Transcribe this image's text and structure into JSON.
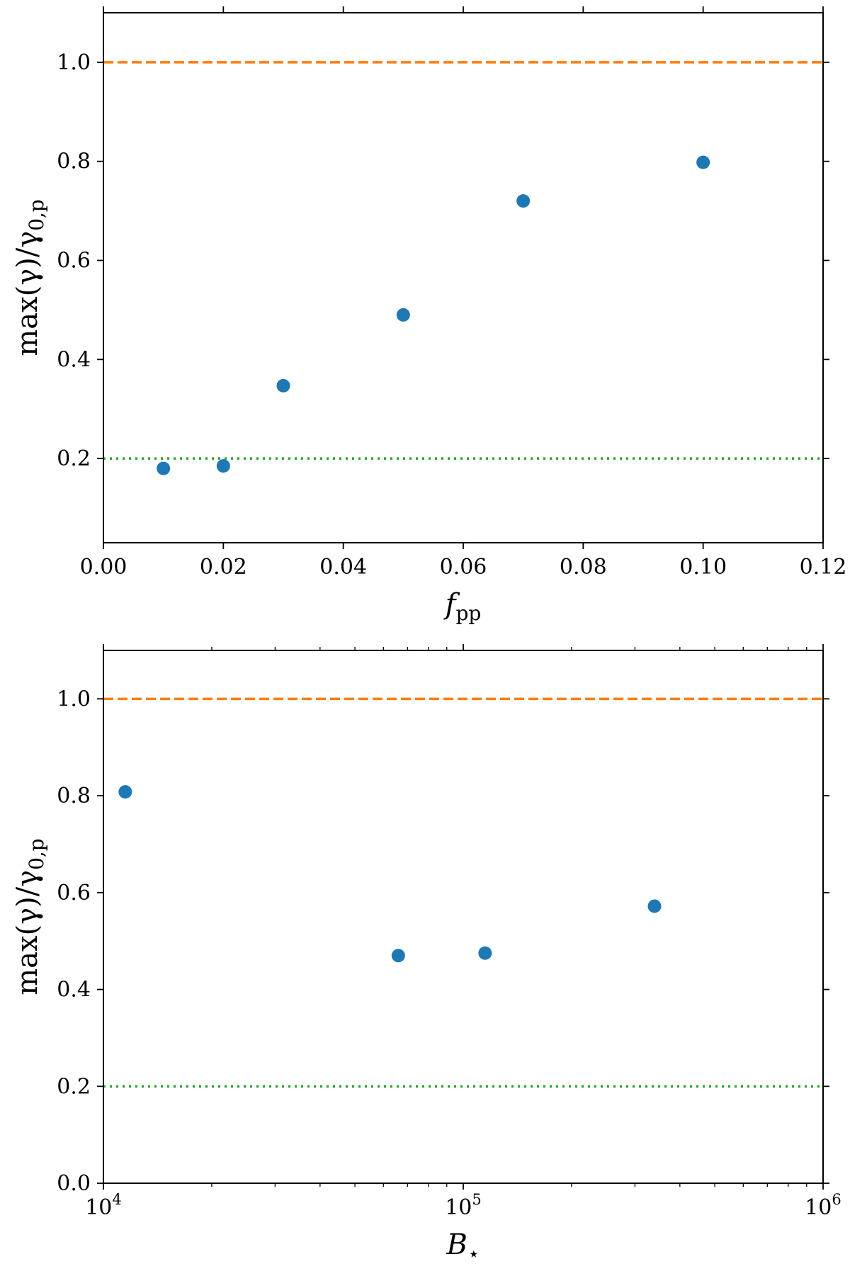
{
  "chart_data": [
    {
      "type": "scatter",
      "xscale": "linear",
      "xlim": [
        0.0,
        0.12
      ],
      "ylim": [
        0.03,
        1.1
      ],
      "xticks": [
        "0.00",
        "0.02",
        "0.04",
        "0.06",
        "0.08",
        "0.10",
        "0.12"
      ],
      "xtick_values": [
        0.0,
        0.02,
        0.04,
        0.06,
        0.08,
        0.1,
        0.12
      ],
      "yticks": [
        "0.2",
        "0.4",
        "0.6",
        "0.8",
        "1.0"
      ],
      "ytick_values": [
        0.2,
        0.4,
        0.6,
        0.8,
        1.0
      ],
      "xlabel": "f",
      "xlabel_sub": "pp",
      "ylabel": "max(γ)/γ",
      "ylabel_sub": "0,p",
      "series": [
        {
          "name": "points",
          "color": "#1f77b4",
          "x": [
            0.01,
            0.02,
            0.03,
            0.05,
            0.07,
            0.1
          ],
          "y": [
            0.18,
            0.185,
            0.347,
            0.49,
            0.72,
            0.798
          ]
        }
      ],
      "hlines": [
        {
          "y": 1.0,
          "color": "#ff7f0e",
          "style": "dashed"
        },
        {
          "y": 0.2,
          "color": "#2ca02c",
          "style": "dotted"
        }
      ]
    },
    {
      "type": "scatter",
      "xscale": "log",
      "xlim": [
        10000,
        1000000
      ],
      "ylim": [
        0.0,
        1.1
      ],
      "xticks_base": [
        "10",
        "10",
        "10"
      ],
      "xticks_exp": [
        "4",
        "5",
        "6"
      ],
      "xtick_values": [
        10000,
        100000,
        1000000
      ],
      "yticks": [
        "0.0",
        "0.2",
        "0.4",
        "0.6",
        "0.8",
        "1.0"
      ],
      "ytick_values": [
        0.0,
        0.2,
        0.4,
        0.6,
        0.8,
        1.0
      ],
      "xlabel": "B",
      "xlabel_sub": "⋆",
      "ylabel": "max(γ)/γ",
      "ylabel_sub": "0,p",
      "series": [
        {
          "name": "points",
          "color": "#1f77b4",
          "x": [
            11500,
            66000,
            115000,
            340000
          ],
          "y": [
            0.808,
            0.47,
            0.475,
            0.572
          ]
        }
      ],
      "hlines": [
        {
          "y": 1.0,
          "color": "#ff7f0e",
          "style": "dashed"
        },
        {
          "y": 0.2,
          "color": "#2ca02c",
          "style": "dotted"
        }
      ]
    }
  ]
}
